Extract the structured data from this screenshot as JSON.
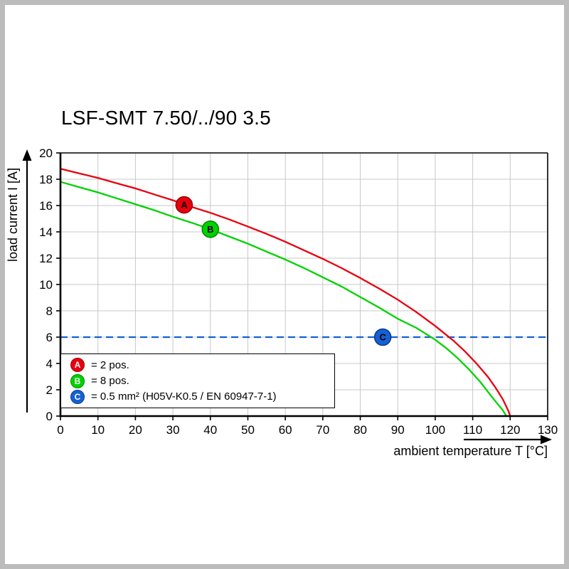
{
  "chart_data": {
    "type": "line",
    "title": "LSF-SMT 7.50/../90 3.5",
    "xlabel": "ambient temperature T [°C]",
    "ylabel": "load current I [A]",
    "xlim": [
      0,
      130
    ],
    "ylim": [
      0,
      20
    ],
    "x_ticks": [
      0,
      10,
      20,
      30,
      40,
      50,
      60,
      70,
      80,
      90,
      100,
      110,
      120,
      130
    ],
    "y_ticks": [
      0,
      2,
      4,
      6,
      8,
      10,
      12,
      14,
      16,
      18,
      20
    ],
    "grid": true,
    "grid_color": "#c8c8c8",
    "axis_color": "#000000",
    "legend_position": "bottom-left-inside",
    "series": [
      {
        "name": "A",
        "label": "2 pos.",
        "color": "#e8000e",
        "ring": "#9b0008",
        "marker": {
          "x": 33,
          "y": 16.05,
          "letter": "A"
        },
        "points": [
          [
            0,
            18.8
          ],
          [
            5,
            18.45
          ],
          [
            10,
            18.1
          ],
          [
            15,
            17.7
          ],
          [
            20,
            17.3
          ],
          [
            25,
            16.85
          ],
          [
            30,
            16.4
          ],
          [
            33,
            16.1
          ],
          [
            35,
            15.9
          ],
          [
            40,
            15.45
          ],
          [
            45,
            14.95
          ],
          [
            50,
            14.4
          ],
          [
            55,
            13.85
          ],
          [
            60,
            13.25
          ],
          [
            65,
            12.6
          ],
          [
            70,
            11.95
          ],
          [
            75,
            11.25
          ],
          [
            80,
            10.5
          ],
          [
            85,
            9.7
          ],
          [
            90,
            8.85
          ],
          [
            95,
            7.9
          ],
          [
            100,
            6.85
          ],
          [
            105,
            5.7
          ],
          [
            108,
            4.9
          ],
          [
            111,
            4.0
          ],
          [
            114,
            3.0
          ],
          [
            116,
            2.2
          ],
          [
            118,
            1.3
          ],
          [
            119.5,
            0.4
          ],
          [
            120,
            0
          ]
        ]
      },
      {
        "name": "B",
        "label": "8 pos.",
        "color": "#00d200",
        "ring": "#008a00",
        "marker": {
          "x": 40,
          "y": 14.2,
          "letter": "B"
        },
        "points": [
          [
            0,
            17.8
          ],
          [
            5,
            17.4
          ],
          [
            10,
            17.0
          ],
          [
            15,
            16.55
          ],
          [
            20,
            16.1
          ],
          [
            25,
            15.65
          ],
          [
            30,
            15.15
          ],
          [
            35,
            14.7
          ],
          [
            40,
            14.2
          ],
          [
            45,
            13.65
          ],
          [
            50,
            13.1
          ],
          [
            55,
            12.5
          ],
          [
            60,
            11.9
          ],
          [
            65,
            11.25
          ],
          [
            70,
            10.55
          ],
          [
            75,
            9.85
          ],
          [
            80,
            9.05
          ],
          [
            85,
            8.25
          ],
          [
            90,
            7.4
          ],
          [
            95,
            6.7
          ],
          [
            100,
            5.8
          ],
          [
            103,
            5.15
          ],
          [
            106,
            4.4
          ],
          [
            109,
            3.55
          ],
          [
            112,
            2.6
          ],
          [
            115,
            1.5
          ],
          [
            117,
            0.8
          ],
          [
            118,
            0.45
          ],
          [
            119,
            0
          ]
        ]
      },
      {
        "name": "C",
        "label": "0.5 mm² (H05V-K0.5 / EN 60947-7-1)",
        "color": "#1560d4",
        "ring": "#0b3c8d",
        "dash": "10 6",
        "marker": {
          "x": 86,
          "y": 6,
          "letter": "C"
        },
        "points": [
          [
            0,
            6
          ],
          [
            130,
            6
          ]
        ]
      }
    ],
    "legend": [
      {
        "letter": "A",
        "color": "#e8000e",
        "ring": "#9b0008",
        "text": "= 2 pos."
      },
      {
        "letter": "B",
        "color": "#00d200",
        "ring": "#008a00",
        "text": "= 8 pos."
      },
      {
        "letter": "C",
        "color": "#1560d4",
        "ring": "#0b3c8d",
        "text": "= 0.5 mm² (H05V-K0.5 / EN 60947-7-1)"
      }
    ]
  }
}
